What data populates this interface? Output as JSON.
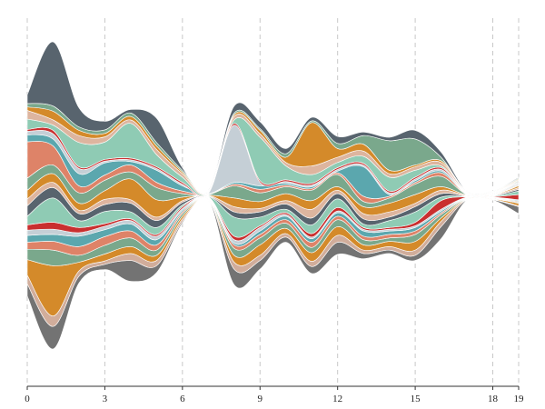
{
  "chart_data": {
    "type": "area",
    "subtype": "streamgraph",
    "offset": "silhouette",
    "curve": "smooth",
    "grid": "vertical-dashed",
    "x_ticks": [
      0,
      3,
      6,
      9,
      12,
      15,
      18,
      19
    ],
    "x_tick_labels": [
      "0",
      "3",
      "6",
      "9",
      "12",
      "15",
      "18",
      "19"
    ],
    "x": [
      0,
      1,
      2,
      3,
      4,
      5,
      6,
      7,
      8,
      9,
      10,
      11,
      12,
      13,
      14,
      15,
      16,
      17,
      18,
      19
    ],
    "ylim": [
      -220,
      220
    ],
    "series": [
      {
        "color": "#737373",
        "values": [
          14,
          26,
          8,
          6,
          24,
          8,
          2,
          0.5,
          18,
          10,
          6,
          8,
          14,
          6,
          4,
          6,
          14,
          0.5,
          0.5,
          8
        ]
      },
      {
        "color": "#d1ad9b",
        "values": [
          10,
          12,
          6,
          4,
          8,
          6,
          3,
          0.5,
          8,
          6,
          4,
          6,
          8,
          4,
          4,
          6,
          6,
          0.5,
          0.5,
          1
        ]
      },
      {
        "color": "#d48a2a",
        "values": [
          18,
          58,
          10,
          8,
          8,
          6,
          3,
          0.5,
          8,
          12,
          6,
          10,
          10,
          6,
          6,
          10,
          4,
          0.5,
          0.5,
          3
        ]
      },
      {
        "color": "#7aa88c",
        "values": [
          12,
          18,
          8,
          10,
          10,
          6,
          3,
          0.5,
          8,
          8,
          6,
          6,
          8,
          6,
          4,
          8,
          4,
          0.5,
          0.5,
          1
        ]
      },
      {
        "color": "#de8368",
        "values": [
          8,
          10,
          10,
          10,
          8,
          6,
          2,
          0.5,
          4,
          4,
          4,
          6,
          4,
          4,
          4,
          4,
          2,
          0.5,
          0.5,
          1
        ]
      },
      {
        "color": "#5ba7ae",
        "values": [
          8,
          8,
          12,
          8,
          8,
          6,
          2,
          0.5,
          2,
          4,
          4,
          4,
          4,
          6,
          4,
          4,
          2,
          0.5,
          0.5,
          1
        ]
      },
      {
        "color": "#c5cfd6",
        "values": [
          6,
          6,
          4,
          4,
          4,
          4,
          2,
          0.5,
          4,
          4,
          2,
          2,
          2,
          2,
          2,
          2,
          2,
          0.5,
          0.5,
          1
        ]
      },
      {
        "color": "#c92f2f",
        "values": [
          6,
          8,
          6,
          3,
          2,
          2,
          2,
          0.5,
          4,
          2,
          2,
          4,
          4,
          2,
          2,
          4,
          10,
          0.5,
          0.5,
          6
        ]
      },
      {
        "color": "#8fcbb4",
        "values": [
          10,
          28,
          8,
          14,
          8,
          8,
          2,
          0.5,
          22,
          10,
          4,
          10,
          10,
          4,
          8,
          12,
          4,
          0.5,
          0.5,
          4
        ]
      },
      {
        "color": "#58646e",
        "values": [
          12,
          12,
          8,
          8,
          10,
          8,
          3,
          0.5,
          6,
          6,
          6,
          8,
          6,
          6,
          4,
          6,
          4,
          0.5,
          0.5,
          2
        ]
      },
      {
        "color": "#ddb59f",
        "values": [
          8,
          6,
          4,
          6,
          4,
          4,
          2,
          0.5,
          6,
          4,
          4,
          10,
          4,
          6,
          6,
          4,
          4,
          0.5,
          0.5,
          2
        ]
      },
      {
        "color": "#d48a2a",
        "values": [
          10,
          10,
          8,
          10,
          24,
          20,
          4,
          0.5,
          10,
          8,
          8,
          10,
          4,
          8,
          10,
          10,
          4,
          0.5,
          0.5,
          2
        ]
      },
      {
        "color": "#7aa88c",
        "values": [
          14,
          10,
          12,
          12,
          8,
          14,
          4,
          0.5,
          14,
          10,
          8,
          12,
          14,
          6,
          6,
          12,
          12,
          0.5,
          0.5,
          1
        ]
      },
      {
        "color": "#de8368",
        "values": [
          42,
          22,
          8,
          6,
          8,
          6,
          3,
          0.5,
          2,
          4,
          2,
          2,
          2,
          6,
          2,
          2,
          4,
          0.5,
          0.5,
          1
        ]
      },
      {
        "color": "#5ba7ae",
        "values": [
          8,
          8,
          14,
          14,
          4,
          14,
          6,
          0.5,
          2,
          4,
          2,
          2,
          2,
          34,
          2,
          2,
          2,
          0.5,
          0.5,
          1
        ]
      },
      {
        "color": "#c5cfd6",
        "values": [
          4,
          6,
          6,
          2,
          2,
          2,
          2,
          0.5,
          66,
          4,
          2,
          2,
          2,
          2,
          2,
          2,
          2,
          0.5,
          0.5,
          1
        ]
      },
      {
        "color": "#c92f2f",
        "values": [
          2,
          4,
          2,
          2,
          2,
          2,
          2,
          0.5,
          2,
          2,
          2,
          2,
          2,
          2,
          2,
          2,
          2,
          0.5,
          0.5,
          1
        ]
      },
      {
        "color": "#8fcbb4",
        "values": [
          12,
          6,
          28,
          20,
          40,
          14,
          6,
          0.5,
          4,
          50,
          16,
          10,
          6,
          8,
          16,
          8,
          2,
          0.5,
          0.5,
          1
        ]
      },
      {
        "color": "#ddb59f",
        "values": [
          10,
          6,
          8,
          6,
          4,
          6,
          4,
          0.5,
          4,
          4,
          4,
          10,
          6,
          6,
          4,
          4,
          4,
          0.5,
          0.5,
          1
        ]
      },
      {
        "color": "#d48a2a",
        "values": [
          4,
          10,
          6,
          4,
          4,
          4,
          2,
          0.5,
          2,
          4,
          6,
          50,
          10,
          8,
          4,
          2,
          2,
          0.5,
          0.5,
          1
        ]
      },
      {
        "color": "#7aa88c",
        "values": [
          4,
          6,
          4,
          4,
          4,
          4,
          2,
          0.5,
          2,
          2,
          4,
          2,
          6,
          10,
          34,
          30,
          4,
          0.5,
          0.5,
          1
        ]
      },
      {
        "color": "#58646e",
        "values": [
          10,
          74,
          22,
          10,
          4,
          28,
          3,
          0.5,
          8,
          8,
          6,
          4,
          8,
          4,
          4,
          10,
          6,
          0.5,
          0.5,
          1
        ]
      }
    ]
  }
}
